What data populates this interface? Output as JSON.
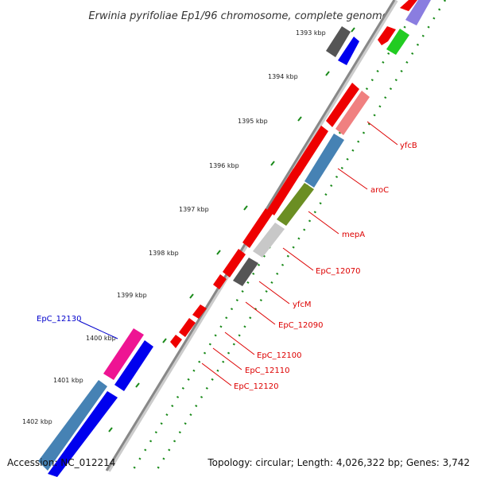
{
  "title": "Erwinia pyrifoliae Ep1/96 chromosome, complete genome",
  "footer": {
    "accession": "Accession: NC_012214",
    "summary": "Topology: circular; Length: 4,026,322 bp; Genes: 3,742"
  },
  "ticks": [
    "1393 kbp",
    "1394 kbp",
    "1395 kbp",
    "1396 kbp",
    "1397 kbp",
    "1398 kbp",
    "1399 kbp",
    "1400 kbp",
    "1401 kbp",
    "1402 kbp"
  ],
  "gene_labels": [
    {
      "name": "yfcB",
      "color": "#dd0000"
    },
    {
      "name": "aroC",
      "color": "#dd0000"
    },
    {
      "name": "mepA",
      "color": "#dd0000"
    },
    {
      "name": "EpC_12070",
      "color": "#dd0000"
    },
    {
      "name": "yfcM",
      "color": "#dd0000"
    },
    {
      "name": "EpC_12090",
      "color": "#dd0000"
    },
    {
      "name": "EpC_12100",
      "color": "#dd0000"
    },
    {
      "name": "EpC_12110",
      "color": "#dd0000"
    },
    {
      "name": "EpC_12120",
      "color": "#dd0000"
    },
    {
      "name": "EpC_12130",
      "color": "#0000cc"
    }
  ],
  "colors": {
    "backbone": "#888888",
    "dots": "#1a8a1a",
    "red": "#ee0000",
    "blue": "#0000ee",
    "gray": "#555555",
    "salmon": "#f08080",
    "steelblue": "#4682b4",
    "olive": "#6b8e23",
    "lightgray": "#c8c8c8",
    "magenta": "#ee1493",
    "green": "#22cc22",
    "lavender": "#8a7de0"
  }
}
